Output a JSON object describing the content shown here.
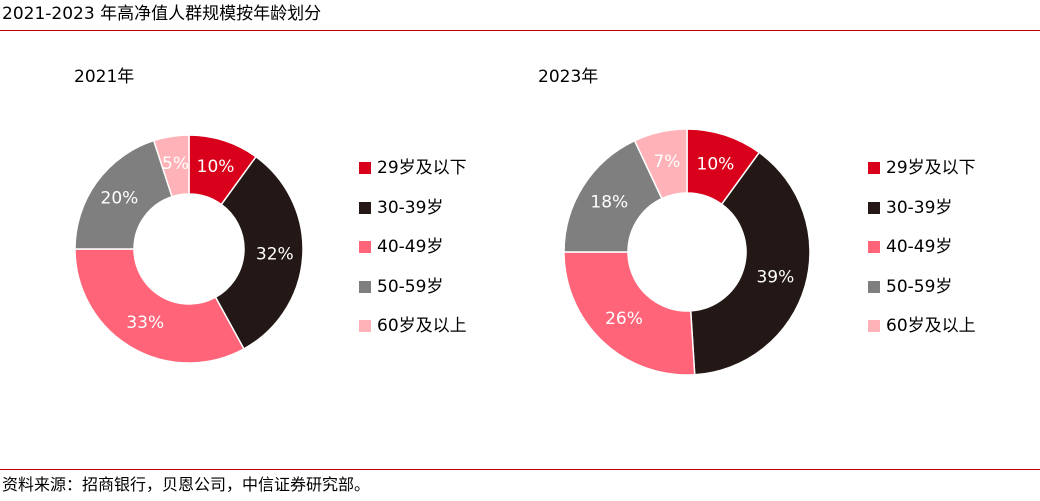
{
  "figure": {
    "title": "2021-2023 年高净值人群规模按年龄划分",
    "source": "资料来源：招商银行，贝恩公司，中信证券研究部。"
  },
  "colors": {
    "rule": "#c00000",
    "label_light": "#ffffff"
  },
  "chart_data": [
    {
      "type": "pie",
      "donut": true,
      "title": "2021年",
      "categories": [
        "29岁及以下",
        "30-39岁",
        "40-49岁",
        "50-59岁",
        "60岁及以上"
      ],
      "values": [
        10,
        32,
        33,
        20,
        5
      ],
      "labels": [
        "10%",
        "32%",
        "33%",
        "20%",
        "5%"
      ],
      "colors": [
        "#d9001b",
        "#231815",
        "#ff6479",
        "#7f7f7f",
        "#ffb3b8"
      ],
      "label_colors": [
        "#ffffff",
        "#ffffff",
        "#ffffff",
        "#ffffff",
        "#ffffff"
      ],
      "start_angle_deg": 0,
      "direction": "clockwise",
      "legend_position": "right"
    },
    {
      "type": "pie",
      "donut": true,
      "title": "2023年",
      "categories": [
        "29岁及以下",
        "30-39岁",
        "40-49岁",
        "50-59岁",
        "60岁及以上"
      ],
      "values": [
        10,
        39,
        26,
        18,
        7
      ],
      "labels": [
        "10%",
        "39%",
        "26%",
        "18%",
        "7%"
      ],
      "colors": [
        "#d9001b",
        "#231815",
        "#ff6479",
        "#7f7f7f",
        "#ffb3b8"
      ],
      "label_colors": [
        "#ffffff",
        "#ffffff",
        "#ffffff",
        "#ffffff",
        "#ffffff"
      ],
      "start_angle_deg": 0,
      "direction": "clockwise",
      "legend_position": "right"
    }
  ]
}
